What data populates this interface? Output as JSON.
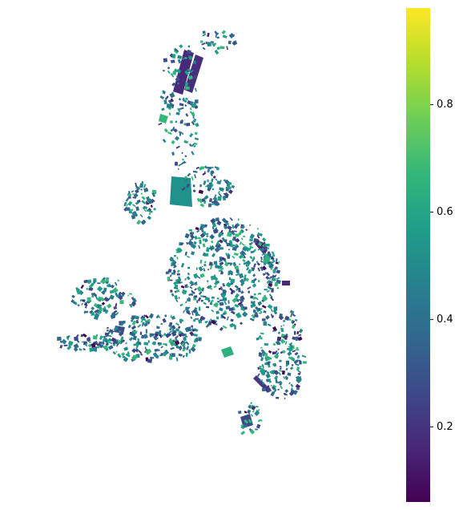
{
  "colorbar": {
    "lim": [
      0.06,
      0.98
    ],
    "ticks": [
      0.2,
      0.4,
      0.6,
      0.8
    ],
    "colors": [
      "#440154",
      "#482878",
      "#3e4989",
      "#31688e",
      "#26828e",
      "#1f9e89",
      "#35b779",
      "#6ece58",
      "#b5de2b",
      "#fde725"
    ]
  }
}
